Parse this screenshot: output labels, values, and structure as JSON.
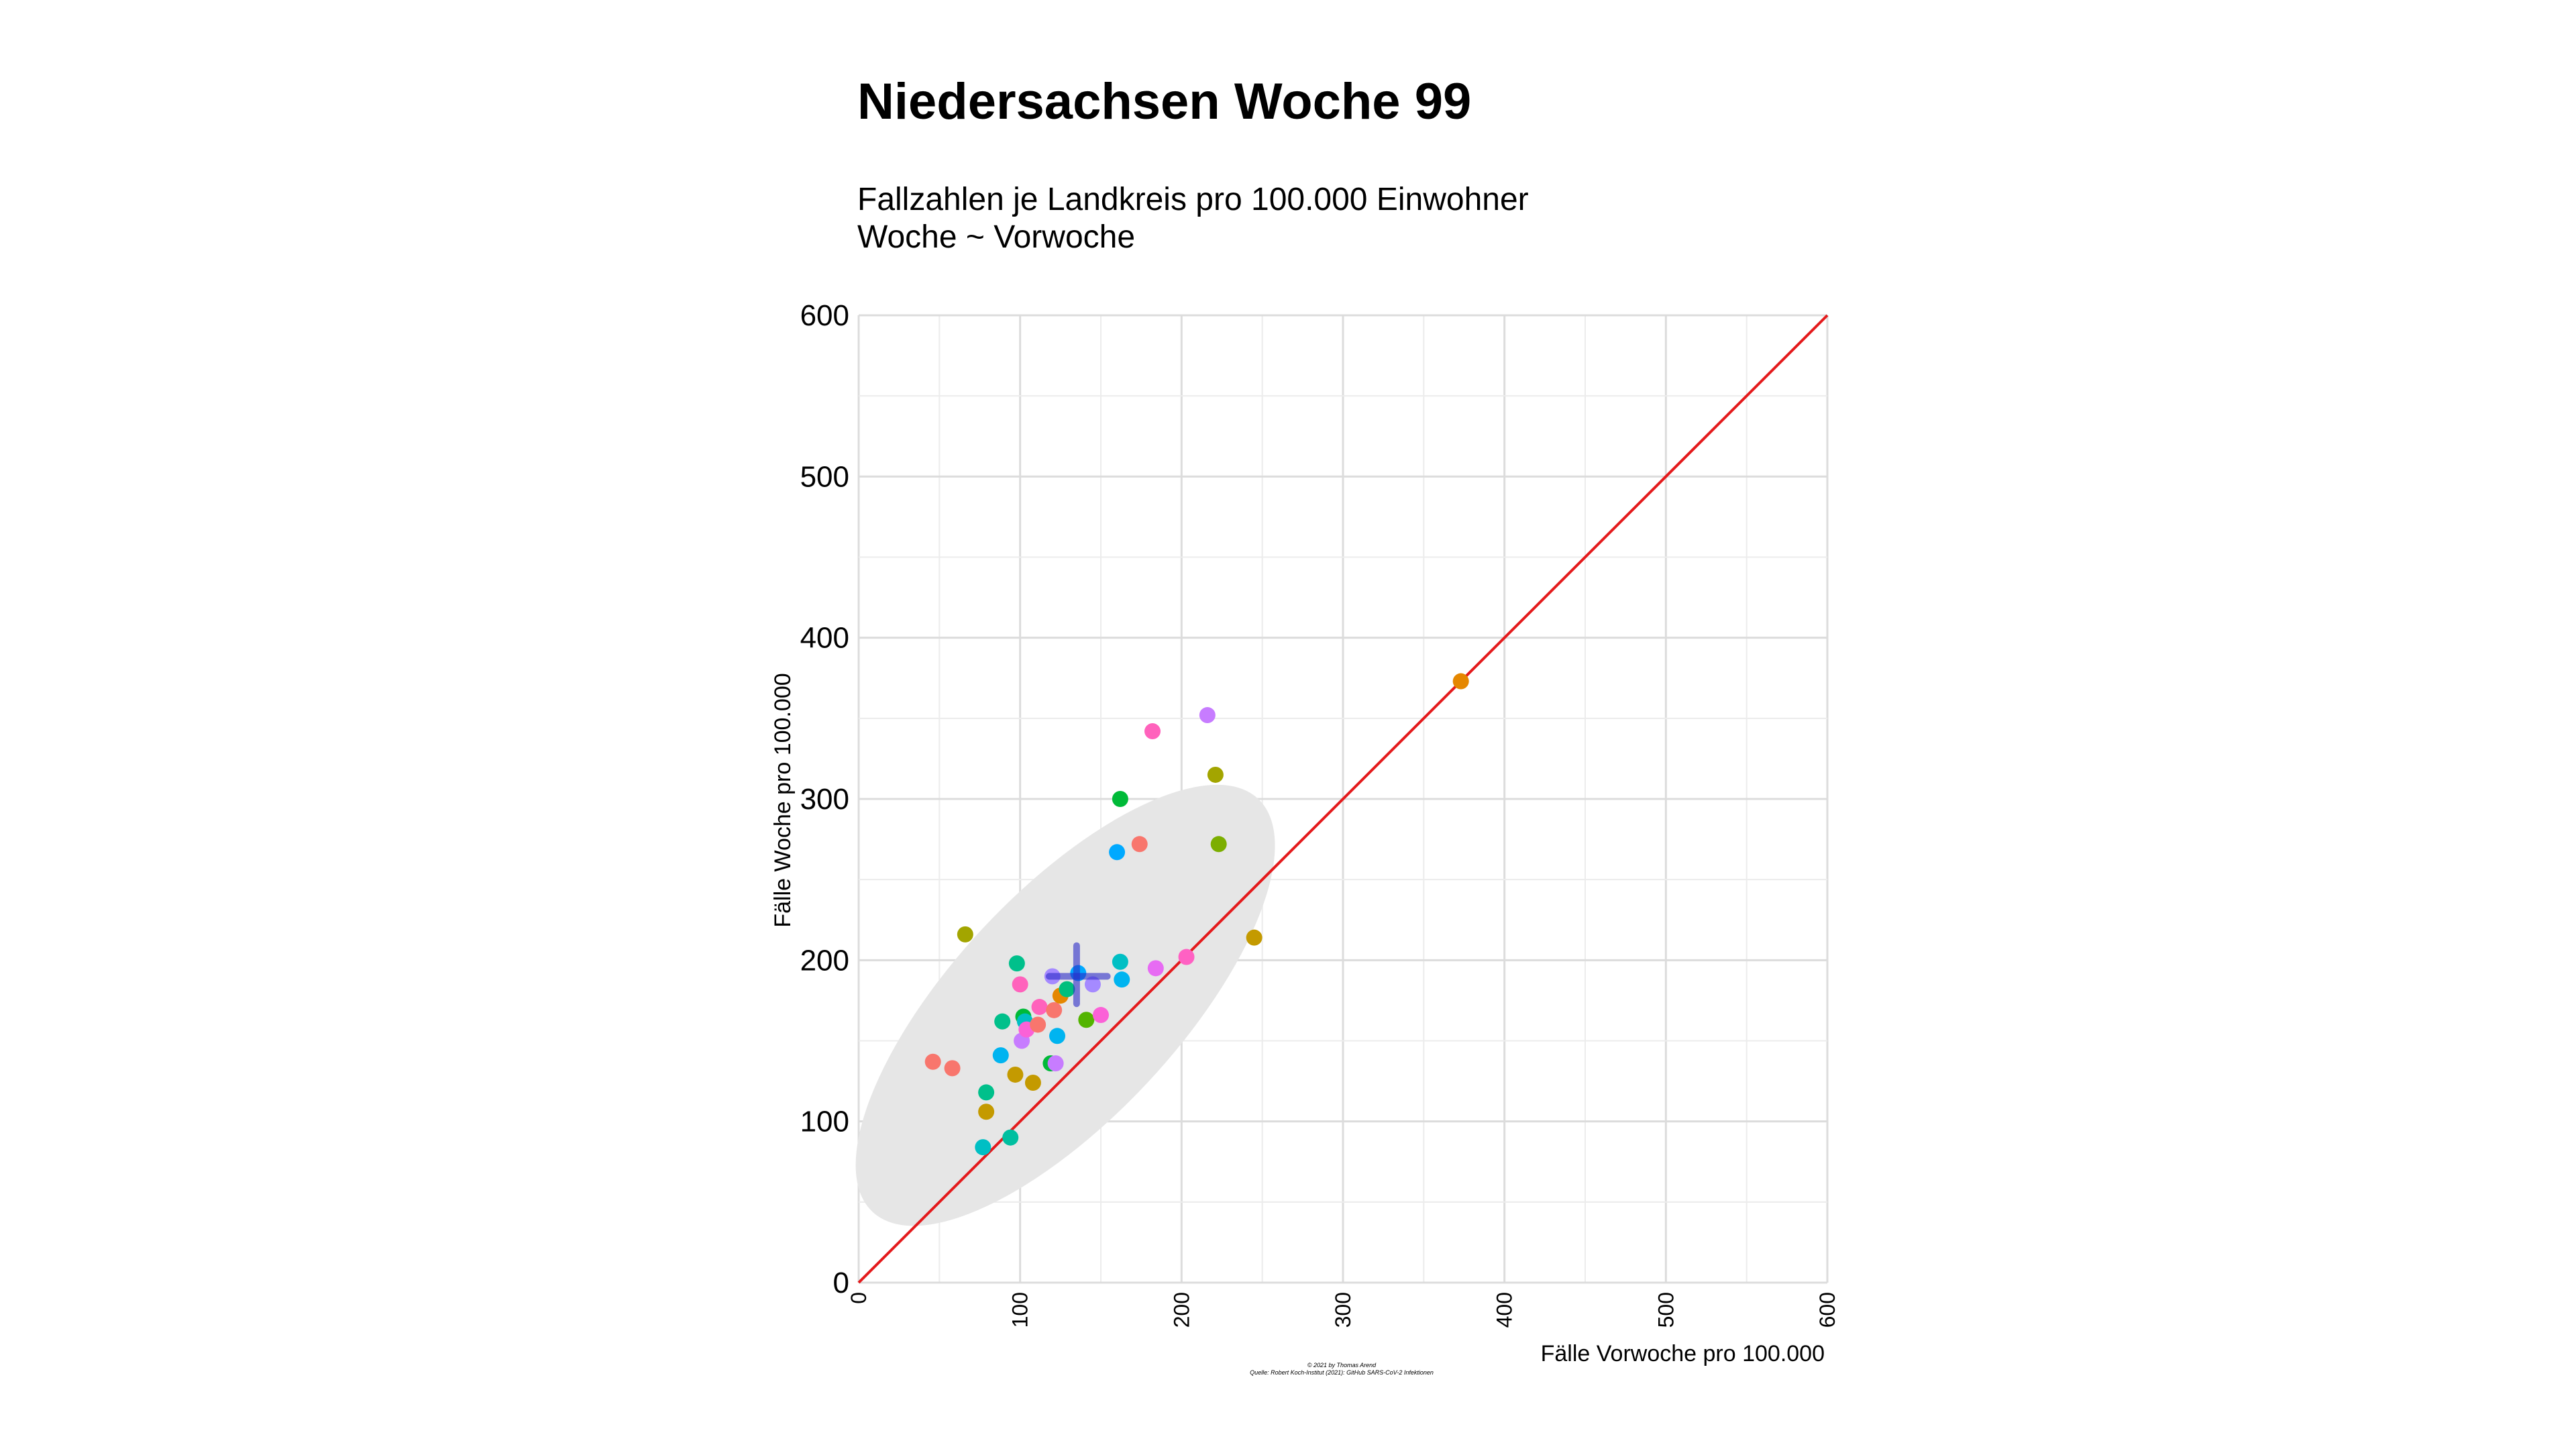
{
  "chart_data": {
    "type": "scatter",
    "title": "Niedersachsen Woche 99",
    "subtitle_lines": [
      "Fallzahlen je Landkreis pro 100.000 Einwohner",
      "Woche ~ Vorwoche"
    ],
    "xlabel": "Fälle Vorwoche pro 100.000",
    "ylabel": "Fälle Woche pro 100.000",
    "xlim": [
      0,
      600
    ],
    "ylim": [
      0,
      600
    ],
    "x_ticks": [
      "0",
      "100",
      "200",
      "300",
      "400",
      "500",
      "600"
    ],
    "y_ticks": [
      "0",
      "100",
      "200",
      "300",
      "400",
      "500",
      "600"
    ],
    "grid": true,
    "reference_line": {
      "from": [
        0,
        0
      ],
      "to": [
        600,
        600
      ],
      "color": "#e41a1c"
    },
    "confidence_ellipse": {
      "center": [
        128,
        172
      ],
      "color": "#e6e6e6"
    },
    "mean_cross": {
      "center": [
        135,
        190
      ],
      "color": "#2c2cc8"
    },
    "points": [
      {
        "x": 46,
        "y": 137,
        "color": "#f8766d"
      },
      {
        "x": 58,
        "y": 133,
        "color": "#f8766d"
      },
      {
        "x": 66,
        "y": 216,
        "color": "#a3a500"
      },
      {
        "x": 77,
        "y": 84,
        "color": "#00bfc4"
      },
      {
        "x": 79,
        "y": 118,
        "color": "#00c08b"
      },
      {
        "x": 79,
        "y": 106,
        "color": "#c49a00"
      },
      {
        "x": 88,
        "y": 141,
        "color": "#00b4f0"
      },
      {
        "x": 89,
        "y": 162,
        "color": "#00c08b"
      },
      {
        "x": 94,
        "y": 90,
        "color": "#00bfa0"
      },
      {
        "x": 97,
        "y": 129,
        "color": "#c49a00"
      },
      {
        "x": 98,
        "y": 198,
        "color": "#00c08b"
      },
      {
        "x": 100,
        "y": 185,
        "color": "#ff62bc"
      },
      {
        "x": 101,
        "y": 150,
        "color": "#c77cff"
      },
      {
        "x": 102,
        "y": 165,
        "color": "#00ba38"
      },
      {
        "x": 103,
        "y": 162,
        "color": "#00bfc4"
      },
      {
        "x": 104,
        "y": 157,
        "color": "#fb61d7"
      },
      {
        "x": 108,
        "y": 124,
        "color": "#c49a00"
      },
      {
        "x": 111,
        "y": 160,
        "color": "#f8766d"
      },
      {
        "x": 112,
        "y": 171,
        "color": "#ff62bc"
      },
      {
        "x": 119,
        "y": 136,
        "color": "#00ba38"
      },
      {
        "x": 120,
        "y": 190,
        "color": "#a58aff"
      },
      {
        "x": 121,
        "y": 169,
        "color": "#f8766d"
      },
      {
        "x": 122,
        "y": 136,
        "color": "#c77cff"
      },
      {
        "x": 123,
        "y": 153,
        "color": "#00b4f0"
      },
      {
        "x": 125,
        "y": 178,
        "color": "#e58700"
      },
      {
        "x": 129,
        "y": 182,
        "color": "#00bf7d"
      },
      {
        "x": 136,
        "y": 192,
        "color": "#00a9ff"
      },
      {
        "x": 141,
        "y": 163,
        "color": "#53b400"
      },
      {
        "x": 145,
        "y": 185,
        "color": "#a58aff"
      },
      {
        "x": 150,
        "y": 166,
        "color": "#fb61d7"
      },
      {
        "x": 160,
        "y": 267,
        "color": "#00a9ff"
      },
      {
        "x": 162,
        "y": 300,
        "color": "#00ba38"
      },
      {
        "x": 162,
        "y": 199,
        "color": "#00bfc4"
      },
      {
        "x": 163,
        "y": 188,
        "color": "#00b4f0"
      },
      {
        "x": 174,
        "y": 272,
        "color": "#f8766d"
      },
      {
        "x": 182,
        "y": 342,
        "color": "#ff62bc"
      },
      {
        "x": 184,
        "y": 195,
        "color": "#e76bf3"
      },
      {
        "x": 203,
        "y": 202,
        "color": "#ff61c3"
      },
      {
        "x": 216,
        "y": 352,
        "color": "#c77cff"
      },
      {
        "x": 221,
        "y": 315,
        "color": "#a3a500"
      },
      {
        "x": 223,
        "y": 272,
        "color": "#7cae00"
      },
      {
        "x": 245,
        "y": 214,
        "color": "#c49a00"
      },
      {
        "x": 373,
        "y": 373,
        "color": "#e58700"
      }
    ]
  },
  "caption_lines": [
    "© 2021 by Thomas Arend",
    "Quelle: Robert Koch-Institut (2021): GitHub SARS-CoV-2 Infektionen"
  ]
}
